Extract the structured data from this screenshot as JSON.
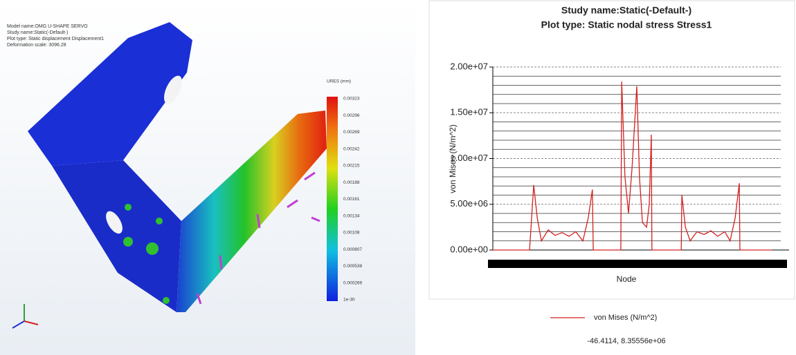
{
  "model_view": {
    "info": [
      "Model name:OMG U-SHAPE SERVO",
      "Study name:Static(-Default-)",
      "Plot type: Static displacement Displacement1",
      "Deformation scale: 3096.28"
    ],
    "legend_title": "URES (mm)",
    "legend_labels": [
      "0.00323",
      "0.00296",
      "0.00269",
      "0.00242",
      "0.00215",
      "0.00188",
      "0.00161",
      "0.00134",
      "0.00108",
      "0.000807",
      "0.000538",
      "0.000269",
      "1e-30"
    ]
  },
  "chart_data": {
    "type": "line",
    "title": "Study name:Static(-Default-)",
    "subtitle": "Plot type: Static nodal stress Stress1",
    "x_label": "Node",
    "y_label": "von Mises (N/m^2)",
    "annotation": "-46.4114, 8.35556e+06",
    "x": [
      0,
      124,
      138,
      150,
      164,
      187,
      210,
      234,
      257,
      280,
      304,
      322,
      336,
      339,
      432,
      435,
      446,
      458,
      470,
      479,
      486,
      495,
      505,
      519,
      528,
      535,
      537,
      636,
      638,
      650,
      666,
      689,
      713,
      736,
      759,
      783,
      801,
      818,
      832,
      834,
      942
    ],
    "series": [
      {
        "name": "von Mises (N/m^2)",
        "color": "#d42020",
        "values": [
          0,
          0,
          7100000,
          3500000,
          1000000,
          2200000,
          1600000,
          1900000,
          1500000,
          2000000,
          1000000,
          3500000,
          6600000,
          0,
          0,
          18400000,
          8000000,
          4000000,
          9000000,
          14000000,
          17900000,
          8000000,
          3000000,
          2500000,
          5000000,
          12600000,
          0,
          0,
          6000000,
          2500000,
          1000000,
          2000000,
          1700000,
          2100000,
          1500000,
          2000000,
          1000000,
          3500000,
          7300000,
          0,
          0
        ]
      }
    ],
    "xlim": [
      0,
      1000
    ],
    "ylim": [
      0,
      20000000
    ],
    "yticks": [
      {
        "value": 0,
        "label": "0.00e+00"
      },
      {
        "value": 5000000,
        "label": "5.00e+06"
      },
      {
        "value": 10000000,
        "label": "1.00e+07"
      },
      {
        "value": 15000000,
        "label": "1.50e+07"
      },
      {
        "value": 20000000,
        "label": "2.00e+07"
      }
    ],
    "minor_yticks": [
      1000000,
      2000000,
      3000000,
      4000000,
      6000000,
      7000000,
      8000000,
      9000000,
      11000000,
      12000000,
      13000000,
      14000000,
      16000000,
      17000000,
      18000000,
      19000000
    ],
    "grid": true
  }
}
